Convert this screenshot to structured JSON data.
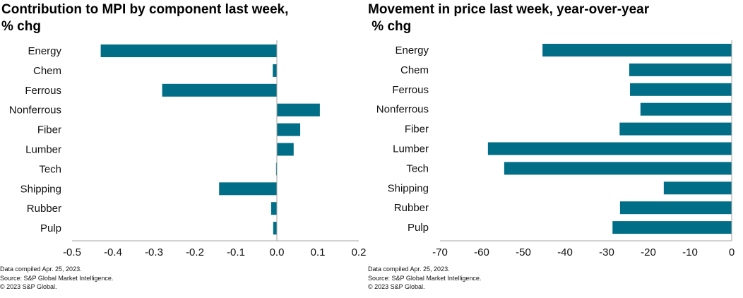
{
  "colors": {
    "bar": "#006E87",
    "axis": "#A6A6A6"
  },
  "chart_data": [
    {
      "type": "bar",
      "orientation": "horizontal",
      "title": "Contribution to MPI by component last week,\n% chg",
      "xlabel": "",
      "ylabel": "",
      "categories": [
        "Energy",
        "Chem",
        "Ferrous",
        "Nonferrous",
        "Fiber",
        "Lumber",
        "Tech",
        "Shipping",
        "Rubber",
        "Pulp"
      ],
      "values": [
        -0.43,
        -0.01,
        -0.28,
        0.105,
        0.057,
        0.041,
        -0.002,
        -0.141,
        -0.014,
        -0.009
      ],
      "xlim": [
        -0.5,
        0.2
      ],
      "xticks": [
        -0.5,
        -0.4,
        -0.3,
        -0.2,
        -0.1,
        0.0,
        0.1,
        0.2
      ],
      "xtick_labels": [
        "-0.5",
        "-0.4",
        "-0.3",
        "-0.2",
        "-0.1",
        "0.0",
        "0.1",
        "0.2"
      ],
      "grid": false,
      "legend": "none"
    },
    {
      "type": "bar",
      "orientation": "horizontal",
      "title": "Movement in price last week, year-over-year\n % chg",
      "xlabel": "",
      "ylabel": "",
      "categories": [
        "Energy",
        "Chem",
        "Ferrous",
        "Nonferrous",
        "Fiber",
        "Lumber",
        "Tech",
        "Shipping",
        "Rubber",
        "Pulp"
      ],
      "values": [
        -45.4,
        -24.6,
        -24.4,
        -21.9,
        -26.9,
        -58.5,
        -54.6,
        -16.3,
        -26.8,
        -28.6
      ],
      "xlim": [
        -70,
        0
      ],
      "xticks": [
        -70,
        -60,
        -50,
        -40,
        -30,
        -20,
        -10,
        0
      ],
      "xtick_labels": [
        "-70",
        "-60",
        "-50",
        "-40",
        "-30",
        "-20",
        "-10",
        "0"
      ],
      "grid": false,
      "legend": "none"
    }
  ],
  "footnotes": {
    "left": [
      "Data compiled Apr. 25, 2023.",
      "Source: S&P Global Market Intelligence.",
      "© 2023 S&P Global."
    ],
    "right": [
      "Data compiled Apr. 25, 2023.",
      "Source: S&P Global Market Intelligence.",
      "© 2023 S&P Global."
    ]
  }
}
